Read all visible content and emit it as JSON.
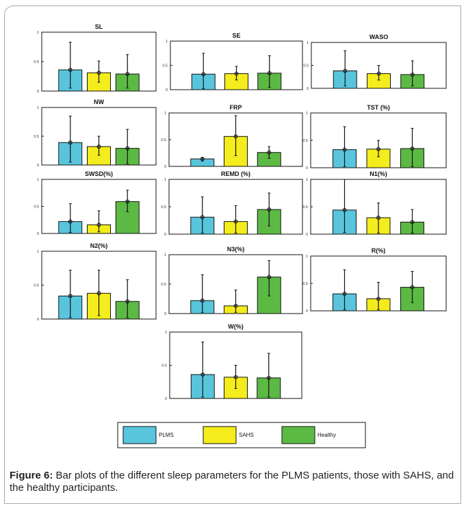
{
  "caption": {
    "label": "Figure 6:",
    "text": " Bar plots of the different sleep parameters for the PLMS patients, those with SAHS, and the healthy participants."
  },
  "legend": {
    "entries": [
      {
        "label": "PLMS",
        "color": "#58c5dc"
      },
      {
        "label": "SAHS",
        "color": "#f4ec1c"
      },
      {
        "label": "Healthy",
        "color": "#5cb944"
      }
    ]
  },
  "chart_data": [
    {
      "type": "bar",
      "title": "SL",
      "categories": [
        "PLMS",
        "SAHS",
        "Healthy"
      ],
      "values": [
        0.36,
        0.31,
        0.29
      ],
      "error_low": [
        0.05,
        0.15,
        0.05
      ],
      "error_high": [
        0.83,
        0.51,
        0.62
      ],
      "ylim": [
        0,
        1
      ],
      "yticks": [
        "0",
        "0.5",
        "1"
      ]
    },
    {
      "type": "bar",
      "title": "SE",
      "categories": [
        "PLMS",
        "SAHS",
        "Healthy"
      ],
      "values": [
        0.32,
        0.33,
        0.34
      ],
      "error_low": [
        0.02,
        0.2,
        0.05
      ],
      "error_high": [
        0.75,
        0.48,
        0.7
      ],
      "ylim": [
        0,
        1
      ],
      "yticks": [
        "0",
        "0.5",
        "1"
      ]
    },
    {
      "type": "bar",
      "title": "WASO",
      "categories": [
        "PLMS",
        "SAHS",
        "Healthy"
      ],
      "values": [
        0.38,
        0.32,
        0.3
      ],
      "error_low": [
        0.05,
        0.18,
        0.05
      ],
      "error_high": [
        0.82,
        0.5,
        0.6
      ],
      "ylim": [
        0,
        1
      ],
      "yticks": [
        "0",
        "0.5",
        "1"
      ]
    },
    {
      "type": "bar",
      "title": "NW",
      "categories": [
        "PLMS",
        "SAHS",
        "Healthy"
      ],
      "values": [
        0.39,
        0.32,
        0.29
      ],
      "error_low": [
        0.05,
        0.17,
        0.02
      ],
      "error_high": [
        0.85,
        0.5,
        0.62
      ],
      "ylim": [
        0,
        1
      ],
      "yticks": [
        "0",
        "0.5",
        "1"
      ]
    },
    {
      "type": "bar",
      "title": "FRP",
      "categories": [
        "PLMS",
        "SAHS",
        "Healthy"
      ],
      "values": [
        0.14,
        0.56,
        0.26
      ],
      "error_low": [
        0.1,
        0.2,
        0.15
      ],
      "error_high": [
        0.16,
        0.95,
        0.37
      ],
      "ylim": [
        0,
        1
      ],
      "yticks": [
        "0",
        "0.5",
        "1"
      ]
    },
    {
      "type": "bar",
      "title": "TST (%)",
      "categories": [
        "PLMS",
        "SAHS",
        "Healthy"
      ],
      "values": [
        0.33,
        0.34,
        0.35
      ],
      "error_low": [
        0.02,
        0.2,
        0.02
      ],
      "error_high": [
        0.75,
        0.5,
        0.72
      ],
      "ylim": [
        0,
        1
      ],
      "yticks": [
        "0",
        "0.5",
        "1"
      ]
    },
    {
      "type": "bar",
      "title": "SWSD(%)",
      "categories": [
        "PLMS",
        "SAHS",
        "Healthy"
      ],
      "values": [
        0.22,
        0.16,
        0.59
      ],
      "error_low": [
        0.02,
        0.03,
        0.4
      ],
      "error_high": [
        0.55,
        0.42,
        0.8
      ],
      "ylim": [
        0,
        1
      ],
      "yticks": [
        "0",
        "0.5",
        "1"
      ]
    },
    {
      "type": "bar",
      "title": "REMD (%)",
      "categories": [
        "PLMS",
        "SAHS",
        "Healthy"
      ],
      "values": [
        0.31,
        0.23,
        0.45
      ],
      "error_low": [
        0.02,
        0.02,
        0.15
      ],
      "error_high": [
        0.68,
        0.52,
        0.75
      ],
      "ylim": [
        0,
        1
      ],
      "yticks": [
        "0",
        "0.5",
        "1"
      ]
    },
    {
      "type": "bar",
      "title": "N1(%)",
      "categories": [
        "PLMS",
        "SAHS",
        "Healthy"
      ],
      "values": [
        0.44,
        0.3,
        0.22
      ],
      "error_low": [
        0.03,
        0.02,
        0.02
      ],
      "error_high": [
        1.0,
        0.57,
        0.45
      ],
      "ylim": [
        0,
        1
      ],
      "yticks": [
        "0",
        "0.5",
        "1"
      ]
    },
    {
      "type": "bar",
      "title": "N2(%)",
      "categories": [
        "PLMS",
        "SAHS",
        "Healthy"
      ],
      "values": [
        0.34,
        0.38,
        0.26
      ],
      "error_low": [
        0.02,
        0.05,
        0.02
      ],
      "error_high": [
        0.72,
        0.72,
        0.58
      ],
      "ylim": [
        0,
        1
      ],
      "yticks": [
        "0",
        "0.5",
        "1"
      ]
    },
    {
      "type": "bar",
      "title": "N3(%)",
      "categories": [
        "PLMS",
        "SAHS",
        "Healthy"
      ],
      "values": [
        0.22,
        0.13,
        0.62
      ],
      "error_low": [
        0.02,
        0.02,
        0.3
      ],
      "error_high": [
        0.66,
        0.4,
        0.9
      ],
      "ylim": [
        0,
        1
      ],
      "yticks": [
        "0",
        "0.5",
        "1"
      ]
    },
    {
      "type": "bar",
      "title": "R(%)",
      "categories": [
        "PLMS",
        "SAHS",
        "Healthy"
      ],
      "values": [
        0.31,
        0.22,
        0.43
      ],
      "error_low": [
        0.02,
        0.02,
        0.15
      ],
      "error_high": [
        0.75,
        0.52,
        0.72
      ],
      "ylim": [
        0,
        1
      ],
      "yticks": [
        "0",
        "0.5",
        "1"
      ]
    },
    {
      "type": "bar",
      "title": "W(%)",
      "categories": [
        "PLMS",
        "SAHS",
        "Healthy"
      ],
      "values": [
        0.36,
        0.32,
        0.31
      ],
      "error_low": [
        0.02,
        0.15,
        0.02
      ],
      "error_high": [
        0.85,
        0.5,
        0.68
      ],
      "ylim": [
        0,
        1
      ],
      "yticks": [
        "0",
        "0.5",
        "1"
      ]
    }
  ]
}
